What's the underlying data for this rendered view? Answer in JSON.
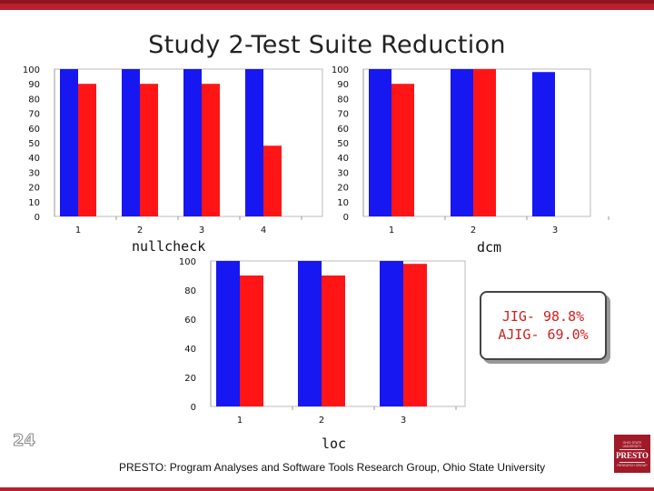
{
  "slide": {
    "title": "Study 2-Test Suite Reduction",
    "slide_number": "24",
    "footer": "PRESTO: Program Analyses and Software Tools Research Group, Ohio State University",
    "logo": {
      "top": "OHIO STATE UNIVERSITY",
      "mid": "PRESTO",
      "bot": "RESEARCH GROUP"
    },
    "note": {
      "line1": "JIG- 98.8%",
      "line2": "AJIG- 69.0%"
    }
  },
  "colors": {
    "blue": "#1717f2",
    "red": "#ff1515",
    "accent": "#b8202f"
  },
  "chart_data": [
    {
      "name": "nullcheck",
      "label": "nullcheck",
      "type": "bar",
      "categories": [
        "1",
        "2",
        "3",
        "4"
      ],
      "series": [
        {
          "values": [
            100,
            100,
            100,
            100
          ],
          "color": "#1717f2"
        },
        {
          "values": [
            90,
            90,
            90,
            48
          ],
          "color": "#ff1515"
        }
      ],
      "yticks": [
        0,
        10,
        20,
        30,
        40,
        50,
        60,
        70,
        80,
        90,
        100
      ],
      "ylim": [
        0,
        100
      ]
    },
    {
      "name": "dcm",
      "label": "dcm",
      "type": "bar",
      "categories": [
        "1",
        "2",
        "3"
      ],
      "series": [
        {
          "values": [
            100,
            100,
            98
          ],
          "color": "#1717f2"
        },
        {
          "values": [
            90,
            100,
            null
          ],
          "color": "#ff1515"
        }
      ],
      "yticks": [
        0,
        10,
        20,
        30,
        40,
        50,
        60,
        70,
        80,
        90,
        100
      ],
      "ylim": [
        0,
        100
      ]
    },
    {
      "name": "loc",
      "label": "loc",
      "type": "bar",
      "categories": [
        "1",
        "2",
        "3"
      ],
      "series": [
        {
          "values": [
            100,
            100,
            100
          ],
          "color": "#1717f2"
        },
        {
          "values": [
            90,
            90,
            98
          ],
          "color": "#ff1515"
        }
      ],
      "yticks": [
        0,
        20,
        40,
        60,
        80,
        100
      ],
      "ylim": [
        0,
        100
      ]
    }
  ]
}
